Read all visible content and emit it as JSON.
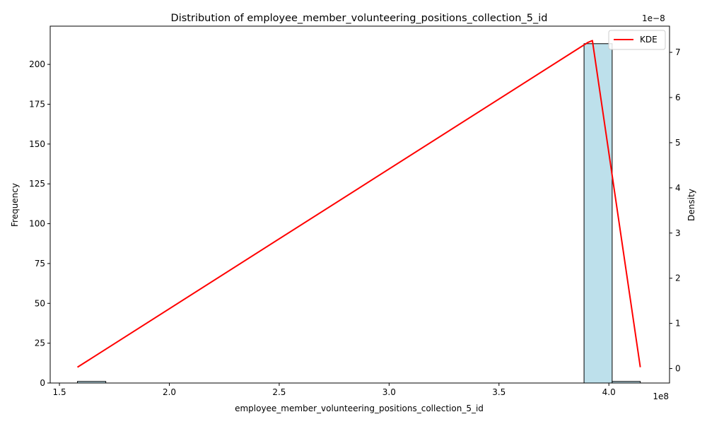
{
  "chart_data": {
    "type": "bar",
    "title": "Distribution of employee_member_volunteering_positions_collection_5_id",
    "xlabel": "employee_member_volunteering_positions_collection_5_id",
    "ylabel": "Frequency",
    "y2label": "Density",
    "x_offset_text": "1e8",
    "y2_offset_text": "1e−8",
    "xlim": [
      1.458,
      4.276
    ],
    "ylim": [
      0,
      224
    ],
    "y2lim": [
      -0.32,
      7.58
    ],
    "x_ticks": [
      {
        "value": 1.5,
        "label": "1.5"
      },
      {
        "value": 2.0,
        "label": "2.0"
      },
      {
        "value": 2.5,
        "label": "2.5"
      },
      {
        "value": 3.0,
        "label": "3.0"
      },
      {
        "value": 3.5,
        "label": "3.5"
      },
      {
        "value": 4.0,
        "label": "4.0"
      }
    ],
    "y_ticks": [
      {
        "value": 0,
        "label": "0"
      },
      {
        "value": 25,
        "label": "25"
      },
      {
        "value": 50,
        "label": "50"
      },
      {
        "value": 75,
        "label": "75"
      },
      {
        "value": 100,
        "label": "100"
      },
      {
        "value": 125,
        "label": "125"
      },
      {
        "value": 150,
        "label": "150"
      },
      {
        "value": 175,
        "label": "175"
      },
      {
        "value": 200,
        "label": "200"
      }
    ],
    "y2_ticks": [
      {
        "value": 0,
        "label": "0"
      },
      {
        "value": 1,
        "label": "1"
      },
      {
        "value": 2,
        "label": "2"
      },
      {
        "value": 3,
        "label": "3"
      },
      {
        "value": 4,
        "label": "4"
      },
      {
        "value": 5,
        "label": "5"
      },
      {
        "value": 6,
        "label": "6"
      },
      {
        "value": 7,
        "label": "7"
      }
    ],
    "bins": [
      {
        "x0": 1.582,
        "x1": 1.711,
        "count": 1
      },
      {
        "x0": 3.887,
        "x1": 4.015,
        "count": 213
      },
      {
        "x0": 4.015,
        "x1": 4.143,
        "count": 1
      }
    ],
    "kde": {
      "name": "KDE",
      "color": "#ff0000",
      "x": [
        1.582,
        3.905,
        3.925,
        4.143
      ],
      "y": [
        0.03,
        7.22,
        7.26,
        0.03
      ]
    },
    "bar_color": "#add8e6",
    "bar_edge_color": "#000000",
    "legend_position": "top-right",
    "grid": false
  }
}
